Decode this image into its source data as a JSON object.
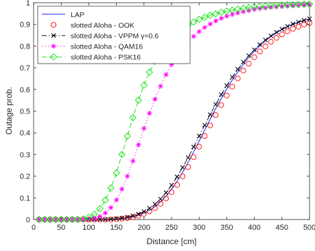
{
  "chart_data": {
    "type": "line",
    "title": "",
    "xlabel": "Distance [cm]",
    "ylabel": "Outage prob.",
    "xlim": [
      0,
      500
    ],
    "ylim": [
      0,
      1
    ],
    "x_ticks": [
      0,
      50,
      100,
      150,
      200,
      250,
      300,
      350,
      400,
      450,
      500
    ],
    "y_ticks": [
      0,
      0.1,
      0.2,
      0.3,
      0.4,
      0.5,
      0.6,
      0.7,
      0.8,
      0.9,
      1
    ],
    "x_tick_labels": [
      "0",
      "50",
      "100",
      "150",
      "200",
      "250",
      "300",
      "350",
      "400",
      "450",
      "500"
    ],
    "y_tick_labels": [
      "0",
      "0.1",
      "0.2",
      "0.3",
      "0.4",
      "0.5",
      "0.6",
      "0.7",
      "0.8",
      "0.9",
      "1"
    ],
    "grid": false,
    "legend_position": "top-left",
    "series": [
      {
        "name": "LAP",
        "color": "#0000ff",
        "line_style": "solid",
        "marker": "none",
        "x": [
          10,
          20,
          30,
          40,
          50,
          60,
          70,
          80,
          90,
          100,
          110,
          120,
          130,
          140,
          150,
          160,
          170,
          180,
          190,
          200,
          210,
          220,
          230,
          240,
          250,
          260,
          270,
          280,
          290,
          300,
          310,
          320,
          330,
          340,
          350,
          360,
          370,
          380,
          390,
          400,
          410,
          420,
          430,
          440,
          450,
          460,
          470,
          480,
          490,
          500
        ],
        "y": [
          0,
          0,
          0,
          0,
          0,
          0,
          0,
          0,
          0,
          0,
          0,
          0,
          0,
          0.001,
          0.003,
          0.005,
          0.008,
          0.013,
          0.02,
          0.03,
          0.043,
          0.06,
          0.082,
          0.108,
          0.14,
          0.177,
          0.218,
          0.264,
          0.312,
          0.362,
          0.413,
          0.463,
          0.512,
          0.558,
          0.602,
          0.643,
          0.681,
          0.716,
          0.748,
          0.776,
          0.802,
          0.824,
          0.844,
          0.861,
          0.876,
          0.889,
          0.9,
          0.91,
          0.918,
          0.925
        ]
      },
      {
        "name": "slotted Aloha - OOK",
        "color": "#ff0000",
        "line_style": "none",
        "marker": "circle",
        "x": [
          10,
          20,
          30,
          40,
          50,
          60,
          70,
          80,
          90,
          100,
          110,
          120,
          130,
          140,
          150,
          160,
          170,
          180,
          190,
          200,
          210,
          220,
          230,
          240,
          250,
          260,
          270,
          280,
          290,
          300,
          310,
          320,
          330,
          340,
          350,
          360,
          370,
          380,
          390,
          400,
          410,
          420,
          430,
          440,
          450,
          460,
          470,
          480,
          490,
          500
        ],
        "y": [
          0,
          0,
          0,
          0,
          0,
          0,
          0,
          0,
          0,
          0,
          0,
          0,
          0,
          0,
          0.002,
          0.004,
          0.007,
          0.011,
          0.017,
          0.026,
          0.038,
          0.053,
          0.073,
          0.097,
          0.126,
          0.16,
          0.199,
          0.242,
          0.288,
          0.336,
          0.385,
          0.434,
          0.482,
          0.528,
          0.572,
          0.613,
          0.651,
          0.687,
          0.719,
          0.749,
          0.775,
          0.799,
          0.82,
          0.838,
          0.854,
          0.868,
          0.88,
          0.89,
          0.899,
          0.906
        ]
      },
      {
        "name": "slotted Aloha - VPPM γ=0.6",
        "color": "#000000",
        "line_style": "dash-dot",
        "marker": "x",
        "x": [
          10,
          20,
          30,
          40,
          50,
          60,
          70,
          80,
          90,
          100,
          110,
          120,
          130,
          140,
          150,
          160,
          170,
          180,
          190,
          200,
          210,
          220,
          230,
          240,
          250,
          260,
          270,
          280,
          290,
          300,
          310,
          320,
          330,
          340,
          350,
          360,
          370,
          380,
          390,
          400,
          410,
          420,
          430,
          440,
          450,
          460,
          470,
          480,
          490,
          500
        ],
        "y": [
          0,
          0,
          0,
          0,
          0,
          0,
          0,
          0,
          0,
          0,
          0,
          0,
          0,
          0.002,
          0.004,
          0.007,
          0.011,
          0.017,
          0.025,
          0.037,
          0.052,
          0.071,
          0.095,
          0.124,
          0.158,
          0.197,
          0.24,
          0.286,
          0.335,
          0.385,
          0.435,
          0.484,
          0.531,
          0.576,
          0.618,
          0.657,
          0.693,
          0.726,
          0.756,
          0.783,
          0.807,
          0.828,
          0.847,
          0.864,
          0.878,
          0.891,
          0.902,
          0.911,
          0.919,
          0.926
        ]
      },
      {
        "name": "slotted Aloha - QAM16",
        "color": "#ff00ff",
        "line_style": "dotted",
        "marker": "asterisk",
        "x": [
          10,
          20,
          30,
          40,
          50,
          60,
          70,
          80,
          90,
          100,
          110,
          120,
          130,
          140,
          150,
          160,
          170,
          180,
          190,
          200,
          210,
          220,
          230,
          240,
          250,
          260,
          270,
          280,
          290,
          300,
          310,
          320,
          330,
          340,
          350,
          360,
          370,
          380,
          390,
          400,
          410,
          420,
          430,
          440,
          450,
          460,
          470,
          480,
          490,
          500
        ],
        "y": [
          0,
          0,
          0,
          0,
          0,
          0,
          0,
          0,
          0,
          0.002,
          0.006,
          0.014,
          0.03,
          0.055,
          0.09,
          0.14,
          0.2,
          0.27,
          0.345,
          0.42,
          0.49,
          0.555,
          0.615,
          0.668,
          0.715,
          0.755,
          0.79,
          0.82,
          0.845,
          0.867,
          0.886,
          0.902,
          0.916,
          0.928,
          0.938,
          0.946,
          0.953,
          0.959,
          0.964,
          0.969,
          0.973,
          0.976,
          0.979,
          0.981,
          0.983,
          0.985,
          0.987,
          0.988,
          0.989,
          0.99
        ]
      },
      {
        "name": "slotted Aloha - PSK16",
        "color": "#00e000",
        "line_style": "dashed",
        "marker": "diamond",
        "x": [
          10,
          20,
          30,
          40,
          50,
          60,
          70,
          80,
          90,
          100,
          110,
          120,
          130,
          140,
          150,
          160,
          170,
          180,
          190,
          200,
          210,
          220,
          230,
          240,
          250,
          260,
          270,
          280,
          290,
          300,
          310,
          320,
          330,
          340,
          350,
          360,
          370,
          380,
          390,
          400,
          410,
          420,
          430,
          440,
          450,
          460,
          470,
          480,
          490,
          500
        ],
        "y": [
          0,
          0,
          0,
          0,
          0,
          0,
          0,
          0,
          0.003,
          0.01,
          0.025,
          0.05,
          0.09,
          0.145,
          0.215,
          0.3,
          0.385,
          0.47,
          0.55,
          0.62,
          0.68,
          0.73,
          0.77,
          0.805,
          0.835,
          0.86,
          0.88,
          0.897,
          0.911,
          0.923,
          0.933,
          0.942,
          0.949,
          0.956,
          0.961,
          0.966,
          0.97,
          0.974,
          0.977,
          0.98,
          0.982,
          0.984,
          0.986,
          0.988,
          0.989,
          0.99,
          0.991,
          0.992,
          0.993,
          0.994
        ]
      }
    ]
  }
}
